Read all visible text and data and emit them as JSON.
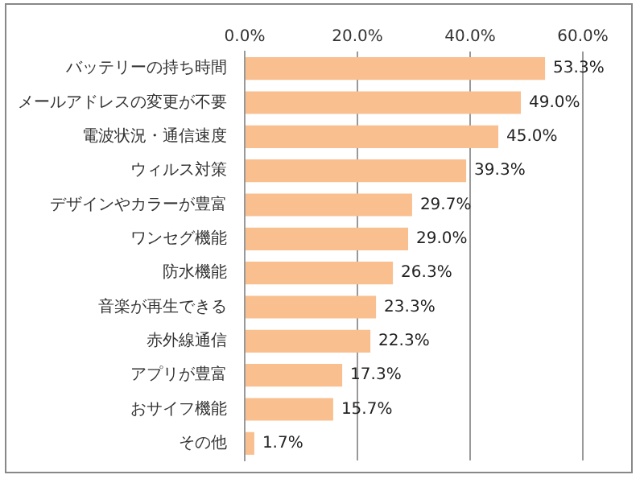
{
  "chart_data": {
    "type": "bar",
    "orientation": "horizontal",
    "categories": [
      "バッテリーの持ち時間",
      "メールアドレスの変更が不要",
      "電波状況・通信速度",
      "ウィルス対策",
      "デザインやカラーが豊富",
      "ワンセグ機能",
      "防水機能",
      "音楽が再生できる",
      "赤外線通信",
      "アプリが豊富",
      "おサイフ機能",
      "その他"
    ],
    "values": [
      53.3,
      49.0,
      45.0,
      39.3,
      29.7,
      29.0,
      26.3,
      23.3,
      22.3,
      17.3,
      15.7,
      1.7
    ],
    "value_labels": [
      "53.3%",
      "49.0%",
      "45.0%",
      "39.3%",
      "29.7%",
      "29.0%",
      "26.3%",
      "23.3%",
      "22.3%",
      "17.3%",
      "15.7%",
      "1.7%"
    ],
    "color": "#f9bf8f",
    "xlim": [
      0,
      60
    ],
    "xticks": [
      {
        "value": 0,
        "label": "0.0%"
      },
      {
        "value": 20,
        "label": "20.0%"
      },
      {
        "value": 40,
        "label": "40.0%"
      },
      {
        "value": 60,
        "label": "60.0%"
      }
    ],
    "grid": "x",
    "legend": false
  }
}
